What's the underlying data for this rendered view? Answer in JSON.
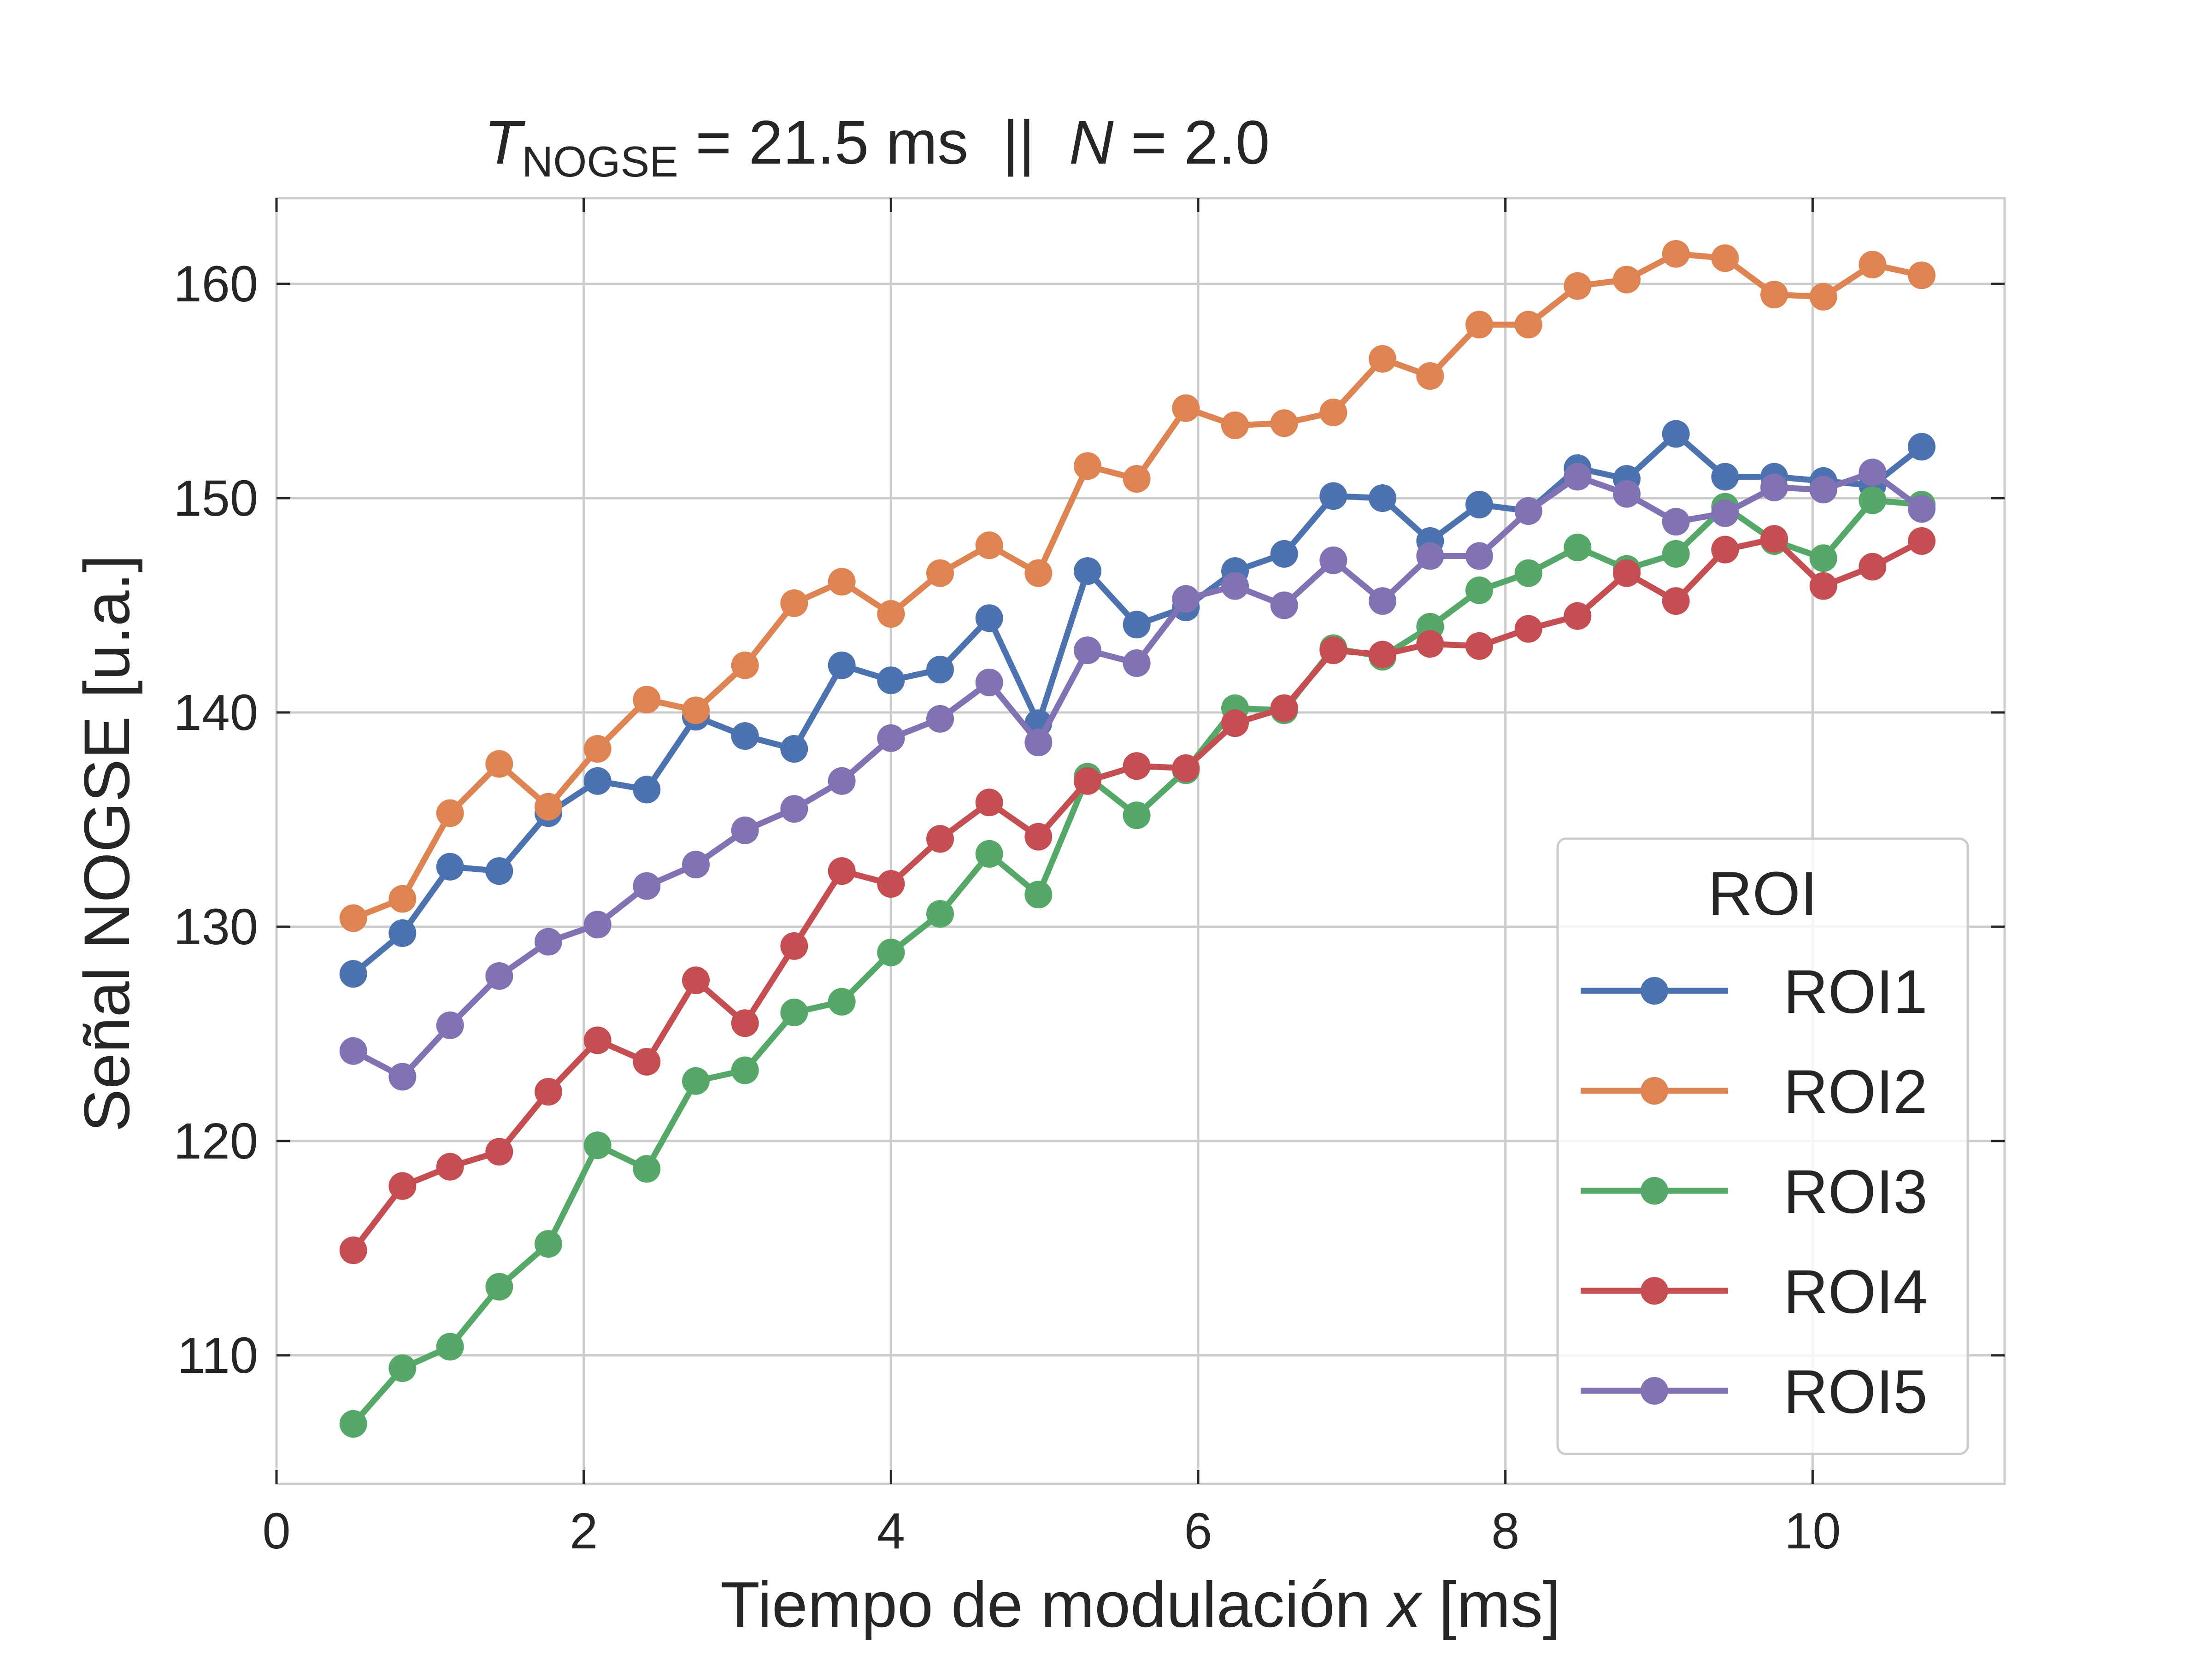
{
  "chart_data": {
    "type": "line",
    "title": {
      "prefix": "T",
      "subscript": "NOGSE",
      "middle": " = 21.5 ms  ||  ",
      "n_symbol": "N",
      "suffix": " = 2.0"
    },
    "xlabel": {
      "text": "Tiempo de modulación ",
      "var": "x",
      "unit": " [ms]"
    },
    "ylabel": "Señal NOGSE [u.a.]",
    "xlim": [
      0,
      11.25
    ],
    "ylim": [
      104,
      164
    ],
    "xticks": [
      0,
      2,
      4,
      6,
      8,
      10
    ],
    "yticks": [
      110,
      120,
      130,
      140,
      150,
      160
    ],
    "grid": true,
    "legend": {
      "title": "ROI",
      "position": "lower-right"
    },
    "x": [
      0.5,
      0.82,
      1.13,
      1.45,
      1.77,
      2.09,
      2.41,
      2.73,
      3.05,
      3.37,
      3.68,
      4.0,
      4.32,
      4.64,
      4.96,
      5.28,
      5.6,
      5.92,
      6.24,
      6.56,
      6.88,
      7.2,
      7.51,
      7.83,
      8.15,
      8.47,
      8.79,
      9.11,
      9.43,
      9.75,
      10.07,
      10.39,
      10.71
    ],
    "series": [
      {
        "name": "ROI1",
        "color": "#4c72b0",
        "values": [
          127.8,
          129.7,
          132.8,
          132.6,
          135.3,
          136.8,
          136.4,
          139.8,
          138.9,
          138.3,
          142.2,
          141.5,
          142.0,
          144.4,
          139.5,
          146.6,
          144.1,
          144.9,
          146.6,
          147.4,
          150.1,
          150.0,
          148.0,
          149.7,
          149.4,
          151.4,
          150.9,
          153.0,
          151.0,
          151.0,
          150.8,
          150.6,
          152.4
        ]
      },
      {
        "name": "ROI2",
        "color": "#dd8452",
        "values": [
          130.4,
          131.3,
          135.3,
          137.6,
          135.6,
          138.3,
          140.6,
          140.1,
          142.2,
          145.1,
          146.1,
          144.6,
          146.5,
          147.8,
          146.5,
          151.5,
          150.9,
          154.2,
          153.4,
          153.5,
          154.0,
          156.5,
          155.7,
          158.1,
          158.1,
          159.9,
          160.2,
          161.4,
          161.2,
          159.5,
          159.4,
          160.9,
          160.4
        ]
      },
      {
        "name": "ROI3",
        "color": "#55a868",
        "values": [
          106.8,
          109.4,
          110.4,
          113.2,
          115.2,
          119.8,
          118.7,
          122.8,
          123.3,
          126.0,
          126.5,
          128.8,
          130.6,
          133.4,
          131.5,
          137.0,
          135.2,
          137.3,
          140.2,
          140.1,
          143.0,
          142.6,
          144.0,
          145.7,
          146.5,
          147.7,
          146.7,
          147.4,
          149.6,
          148.0,
          147.2,
          149.9,
          149.7
        ]
      },
      {
        "name": "ROI4",
        "color": "#c44e52",
        "values": [
          114.9,
          117.9,
          118.8,
          119.5,
          122.3,
          124.7,
          123.7,
          127.5,
          125.5,
          129.1,
          132.6,
          132.0,
          134.1,
          135.8,
          134.2,
          136.8,
          137.5,
          137.4,
          139.5,
          140.2,
          142.9,
          142.7,
          143.2,
          143.1,
          143.9,
          144.5,
          146.5,
          145.2,
          147.6,
          148.1,
          145.9,
          146.8,
          148.0
        ]
      },
      {
        "name": "ROI5",
        "color": "#8172b3",
        "values": [
          124.2,
          123.0,
          125.4,
          127.7,
          129.3,
          130.1,
          131.9,
          132.9,
          134.5,
          135.5,
          136.8,
          138.8,
          139.7,
          141.4,
          138.6,
          142.9,
          142.3,
          145.3,
          145.9,
          145.0,
          147.1,
          145.2,
          147.3,
          147.3,
          149.4,
          151.0,
          150.2,
          148.9,
          149.3,
          150.5,
          150.4,
          151.2,
          149.5
        ]
      }
    ]
  }
}
